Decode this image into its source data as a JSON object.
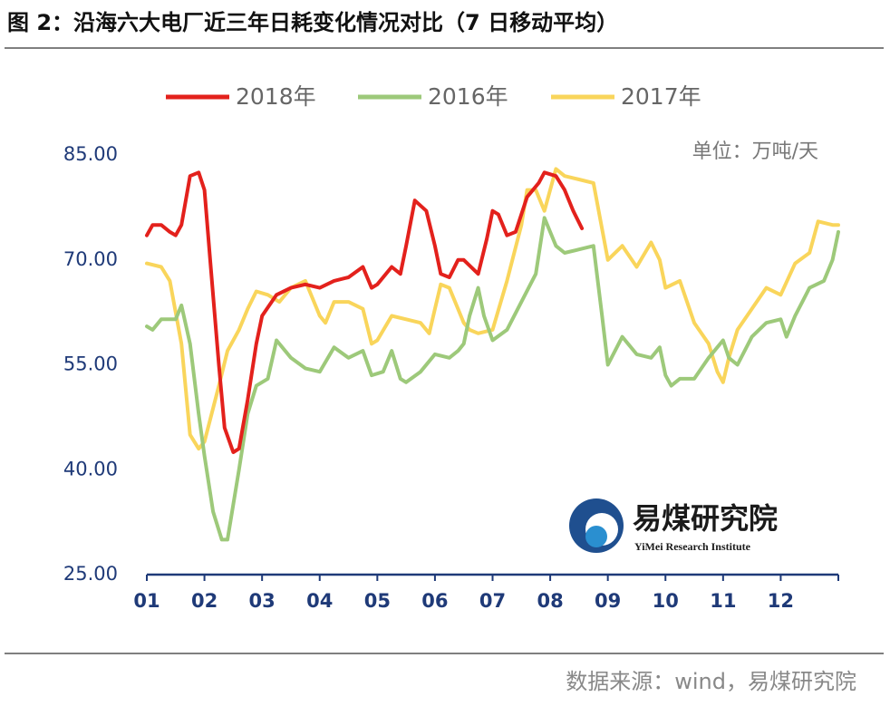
{
  "chart_data": {
    "type": "line",
    "title": "图 2：沿海六大电厂近三年日耗变化情况对比（7 日移动平均）",
    "unit_label": "单位：万吨/天",
    "source": "数据来源：wind，易煤研究院",
    "watermark": {
      "name": "易煤研究院",
      "subtitle": "YiMei Research Institute"
    },
    "xlim": [
      1,
      13
    ],
    "xticks": [
      {
        "value": 1,
        "label": "01"
      },
      {
        "value": 2,
        "label": "02"
      },
      {
        "value": 3,
        "label": "03"
      },
      {
        "value": 4,
        "label": "04"
      },
      {
        "value": 5,
        "label": "05"
      },
      {
        "value": 6,
        "label": "06"
      },
      {
        "value": 7,
        "label": "07"
      },
      {
        "value": 8,
        "label": "08"
      },
      {
        "value": 9,
        "label": "09"
      },
      {
        "value": 10,
        "label": "10"
      },
      {
        "value": 11,
        "label": "11"
      },
      {
        "value": 12,
        "label": "12"
      }
    ],
    "ylim": [
      25,
      85
    ],
    "yticks": [
      {
        "value": 25,
        "label": "25.00"
      },
      {
        "value": 40,
        "label": "40.00"
      },
      {
        "value": 55,
        "label": "55.00"
      },
      {
        "value": 70,
        "label": "70.00"
      },
      {
        "value": 85,
        "label": "85.00"
      }
    ],
    "grid": false,
    "legend": "top",
    "series": [
      {
        "name": "2018年",
        "color": "#e3211c",
        "x": [
          1.0,
          1.1,
          1.25,
          1.4,
          1.5,
          1.6,
          1.75,
          1.9,
          2.0,
          2.1,
          2.25,
          2.35,
          2.5,
          2.6,
          2.75,
          2.9,
          3.0,
          3.25,
          3.5,
          3.75,
          4.0,
          4.25,
          4.5,
          4.75,
          4.9,
          5.0,
          5.25,
          5.4,
          5.5,
          5.65,
          5.85,
          6.0,
          6.1,
          6.25,
          6.4,
          6.5,
          6.75,
          6.9,
          7.0,
          7.1,
          7.25,
          7.4,
          7.6,
          7.8,
          7.9,
          8.1,
          8.25,
          8.4,
          8.55
        ],
        "values": [
          73.5,
          75,
          75,
          74,
          73.5,
          75,
          82,
          82.5,
          80,
          70,
          55,
          46,
          42.5,
          43,
          50,
          58,
          62,
          65,
          66,
          66.5,
          66,
          67,
          67.5,
          69,
          66,
          66.5,
          69,
          68,
          72,
          78.5,
          77,
          72,
          68,
          67.5,
          70,
          70,
          68,
          73,
          77,
          76.5,
          73.5,
          74,
          79,
          81,
          82.5,
          82,
          80,
          77,
          74.5
        ]
      },
      {
        "name": "2016年",
        "color": "#9dc97a",
        "x": [
          1.0,
          1.1,
          1.25,
          1.5,
          1.6,
          1.75,
          1.9,
          2.0,
          2.15,
          2.3,
          2.4,
          2.6,
          2.75,
          2.9,
          3.1,
          3.25,
          3.5,
          3.75,
          4.0,
          4.25,
          4.5,
          4.75,
          4.9,
          5.1,
          5.25,
          5.4,
          5.5,
          5.75,
          6.0,
          6.25,
          6.4,
          6.5,
          6.6,
          6.75,
          6.85,
          7.0,
          7.25,
          7.5,
          7.75,
          7.9,
          8.1,
          8.25,
          8.5,
          8.75,
          8.9,
          9.0,
          9.25,
          9.5,
          9.75,
          9.9,
          10.0,
          10.1,
          10.25,
          10.5,
          10.75,
          11.0,
          11.1,
          11.25,
          11.5,
          11.75,
          12.0,
          12.1,
          12.25,
          12.5,
          12.75,
          12.9,
          13.0
        ],
        "values": [
          60.5,
          60,
          61.5,
          61.5,
          63.5,
          58,
          48,
          42,
          34,
          30,
          30,
          40,
          48,
          52,
          53,
          58.5,
          56,
          54.5,
          54,
          57.5,
          56,
          57,
          53.5,
          54,
          57,
          53,
          52.5,
          54,
          56.5,
          56,
          57,
          58,
          62,
          66,
          62,
          58.5,
          60,
          64,
          68,
          76,
          72,
          71,
          71.5,
          72,
          62,
          55,
          59,
          56.5,
          56,
          57.5,
          53.5,
          52,
          53,
          53,
          56,
          58.5,
          56,
          55,
          59,
          61,
          61.5,
          59,
          62,
          66,
          67,
          70,
          74
        ]
      },
      {
        "name": "2017年",
        "color": "#f9d55b",
        "x": [
          1.0,
          1.25,
          1.4,
          1.6,
          1.75,
          1.9,
          2.0,
          2.25,
          2.4,
          2.6,
          2.75,
          2.9,
          3.1,
          3.3,
          3.5,
          3.75,
          4.0,
          4.1,
          4.25,
          4.5,
          4.75,
          4.9,
          5.0,
          5.25,
          5.5,
          5.75,
          5.9,
          6.0,
          6.1,
          6.25,
          6.5,
          6.6,
          6.75,
          7.0,
          7.25,
          7.5,
          7.6,
          7.75,
          7.9,
          8.1,
          8.25,
          8.5,
          8.75,
          9.0,
          9.25,
          9.5,
          9.75,
          9.9,
          10.0,
          10.25,
          10.5,
          10.75,
          10.9,
          11.0,
          11.1,
          11.25,
          11.5,
          11.75,
          12.0,
          12.25,
          12.5,
          12.65,
          12.9,
          13.0
        ],
        "values": [
          69.5,
          69,
          67,
          58,
          45,
          43,
          44,
          52,
          57,
          60,
          63,
          65.5,
          65,
          64,
          66,
          67,
          62,
          61,
          64,
          64,
          63,
          58,
          58.5,
          62,
          61.5,
          61,
          59.5,
          63,
          66.5,
          66,
          61,
          60,
          59.5,
          60,
          67,
          75,
          80,
          80,
          77,
          83,
          82,
          81.5,
          81,
          70,
          72,
          69,
          72.5,
          70,
          66,
          67,
          61,
          58,
          54,
          52.5,
          56,
          60,
          63,
          66,
          65,
          69.5,
          71,
          75.5,
          75,
          75
        ]
      }
    ]
  }
}
